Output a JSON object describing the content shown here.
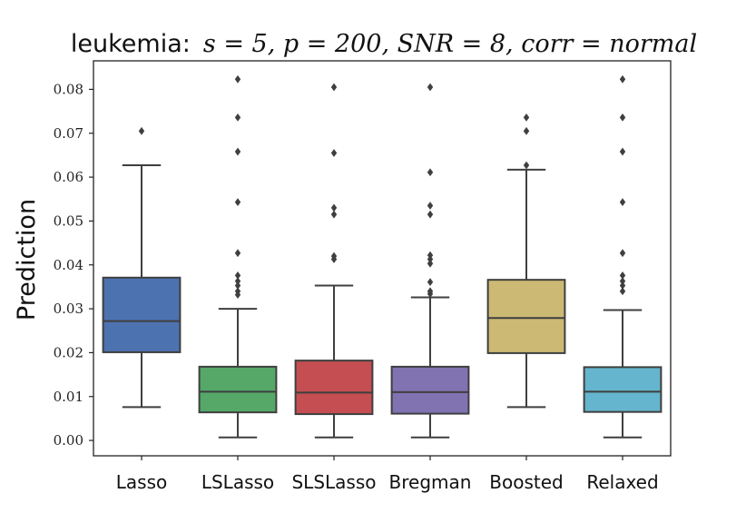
{
  "chart_data": {
    "type": "box",
    "title_prefix": "leukemia:",
    "title_math": "s = 5, p = 200, SNR = 8, corr = normal",
    "xlabel": "",
    "ylabel": "Prediction",
    "ylim": [
      -0.0035,
      0.0865
    ],
    "yticks": [
      0.0,
      0.01,
      0.02,
      0.03,
      0.04,
      0.05,
      0.06,
      0.07,
      0.08
    ],
    "ytick_labels": [
      "0.00",
      "0.01",
      "0.02",
      "0.03",
      "0.04",
      "0.05",
      "0.06",
      "0.07",
      "0.08"
    ],
    "grid": false,
    "categories": [
      "Lasso",
      "LSLasso",
      "SLSLasso",
      "Bregman",
      "Boosted",
      "Relaxed"
    ],
    "boxes": [
      {
        "name": "Lasso",
        "color": "#4c72b0",
        "whisker_low": 0.0076,
        "q1": 0.0201,
        "median": 0.0272,
        "q3": 0.0371,
        "whisker_high": 0.0627,
        "outliers": [
          0.0705
        ]
      },
      {
        "name": "LSLasso",
        "color": "#55a868",
        "whisker_low": 0.0007,
        "q1": 0.0064,
        "median": 0.0111,
        "q3": 0.0168,
        "whisker_high": 0.03,
        "outliers": [
          0.0823,
          0.0736,
          0.0658,
          0.0543,
          0.0427,
          0.0376,
          0.0363,
          0.0353,
          0.034,
          0.0332
        ]
      },
      {
        "name": "SLSLasso",
        "color": "#c44e52",
        "whisker_low": 0.0007,
        "q1": 0.006,
        "median": 0.0109,
        "q3": 0.0182,
        "whisker_high": 0.0353,
        "outliers": [
          0.0805,
          0.0655,
          0.053,
          0.0515,
          0.042,
          0.0413
        ]
      },
      {
        "name": "Bregman",
        "color": "#8172b2",
        "whisker_low": 0.0007,
        "q1": 0.0061,
        "median": 0.011,
        "q3": 0.0168,
        "whisker_high": 0.0326,
        "outliers": [
          0.0805,
          0.0611,
          0.0535,
          0.0515,
          0.0422,
          0.0413,
          0.0403,
          0.0361,
          0.034,
          0.0334
        ]
      },
      {
        "name": "Boosted",
        "color": "#ccb974",
        "whisker_low": 0.0076,
        "q1": 0.0199,
        "median": 0.0279,
        "q3": 0.0366,
        "whisker_high": 0.0617,
        "outliers": [
          0.0736,
          0.0705,
          0.0627
        ]
      },
      {
        "name": "Relaxed",
        "color": "#64b5cd",
        "whisker_low": 0.0007,
        "q1": 0.0065,
        "median": 0.0111,
        "q3": 0.0167,
        "whisker_high": 0.0297,
        "outliers": [
          0.0823,
          0.0736,
          0.0658,
          0.0543,
          0.0427,
          0.0376,
          0.0363,
          0.0353,
          0.034
        ]
      }
    ]
  }
}
